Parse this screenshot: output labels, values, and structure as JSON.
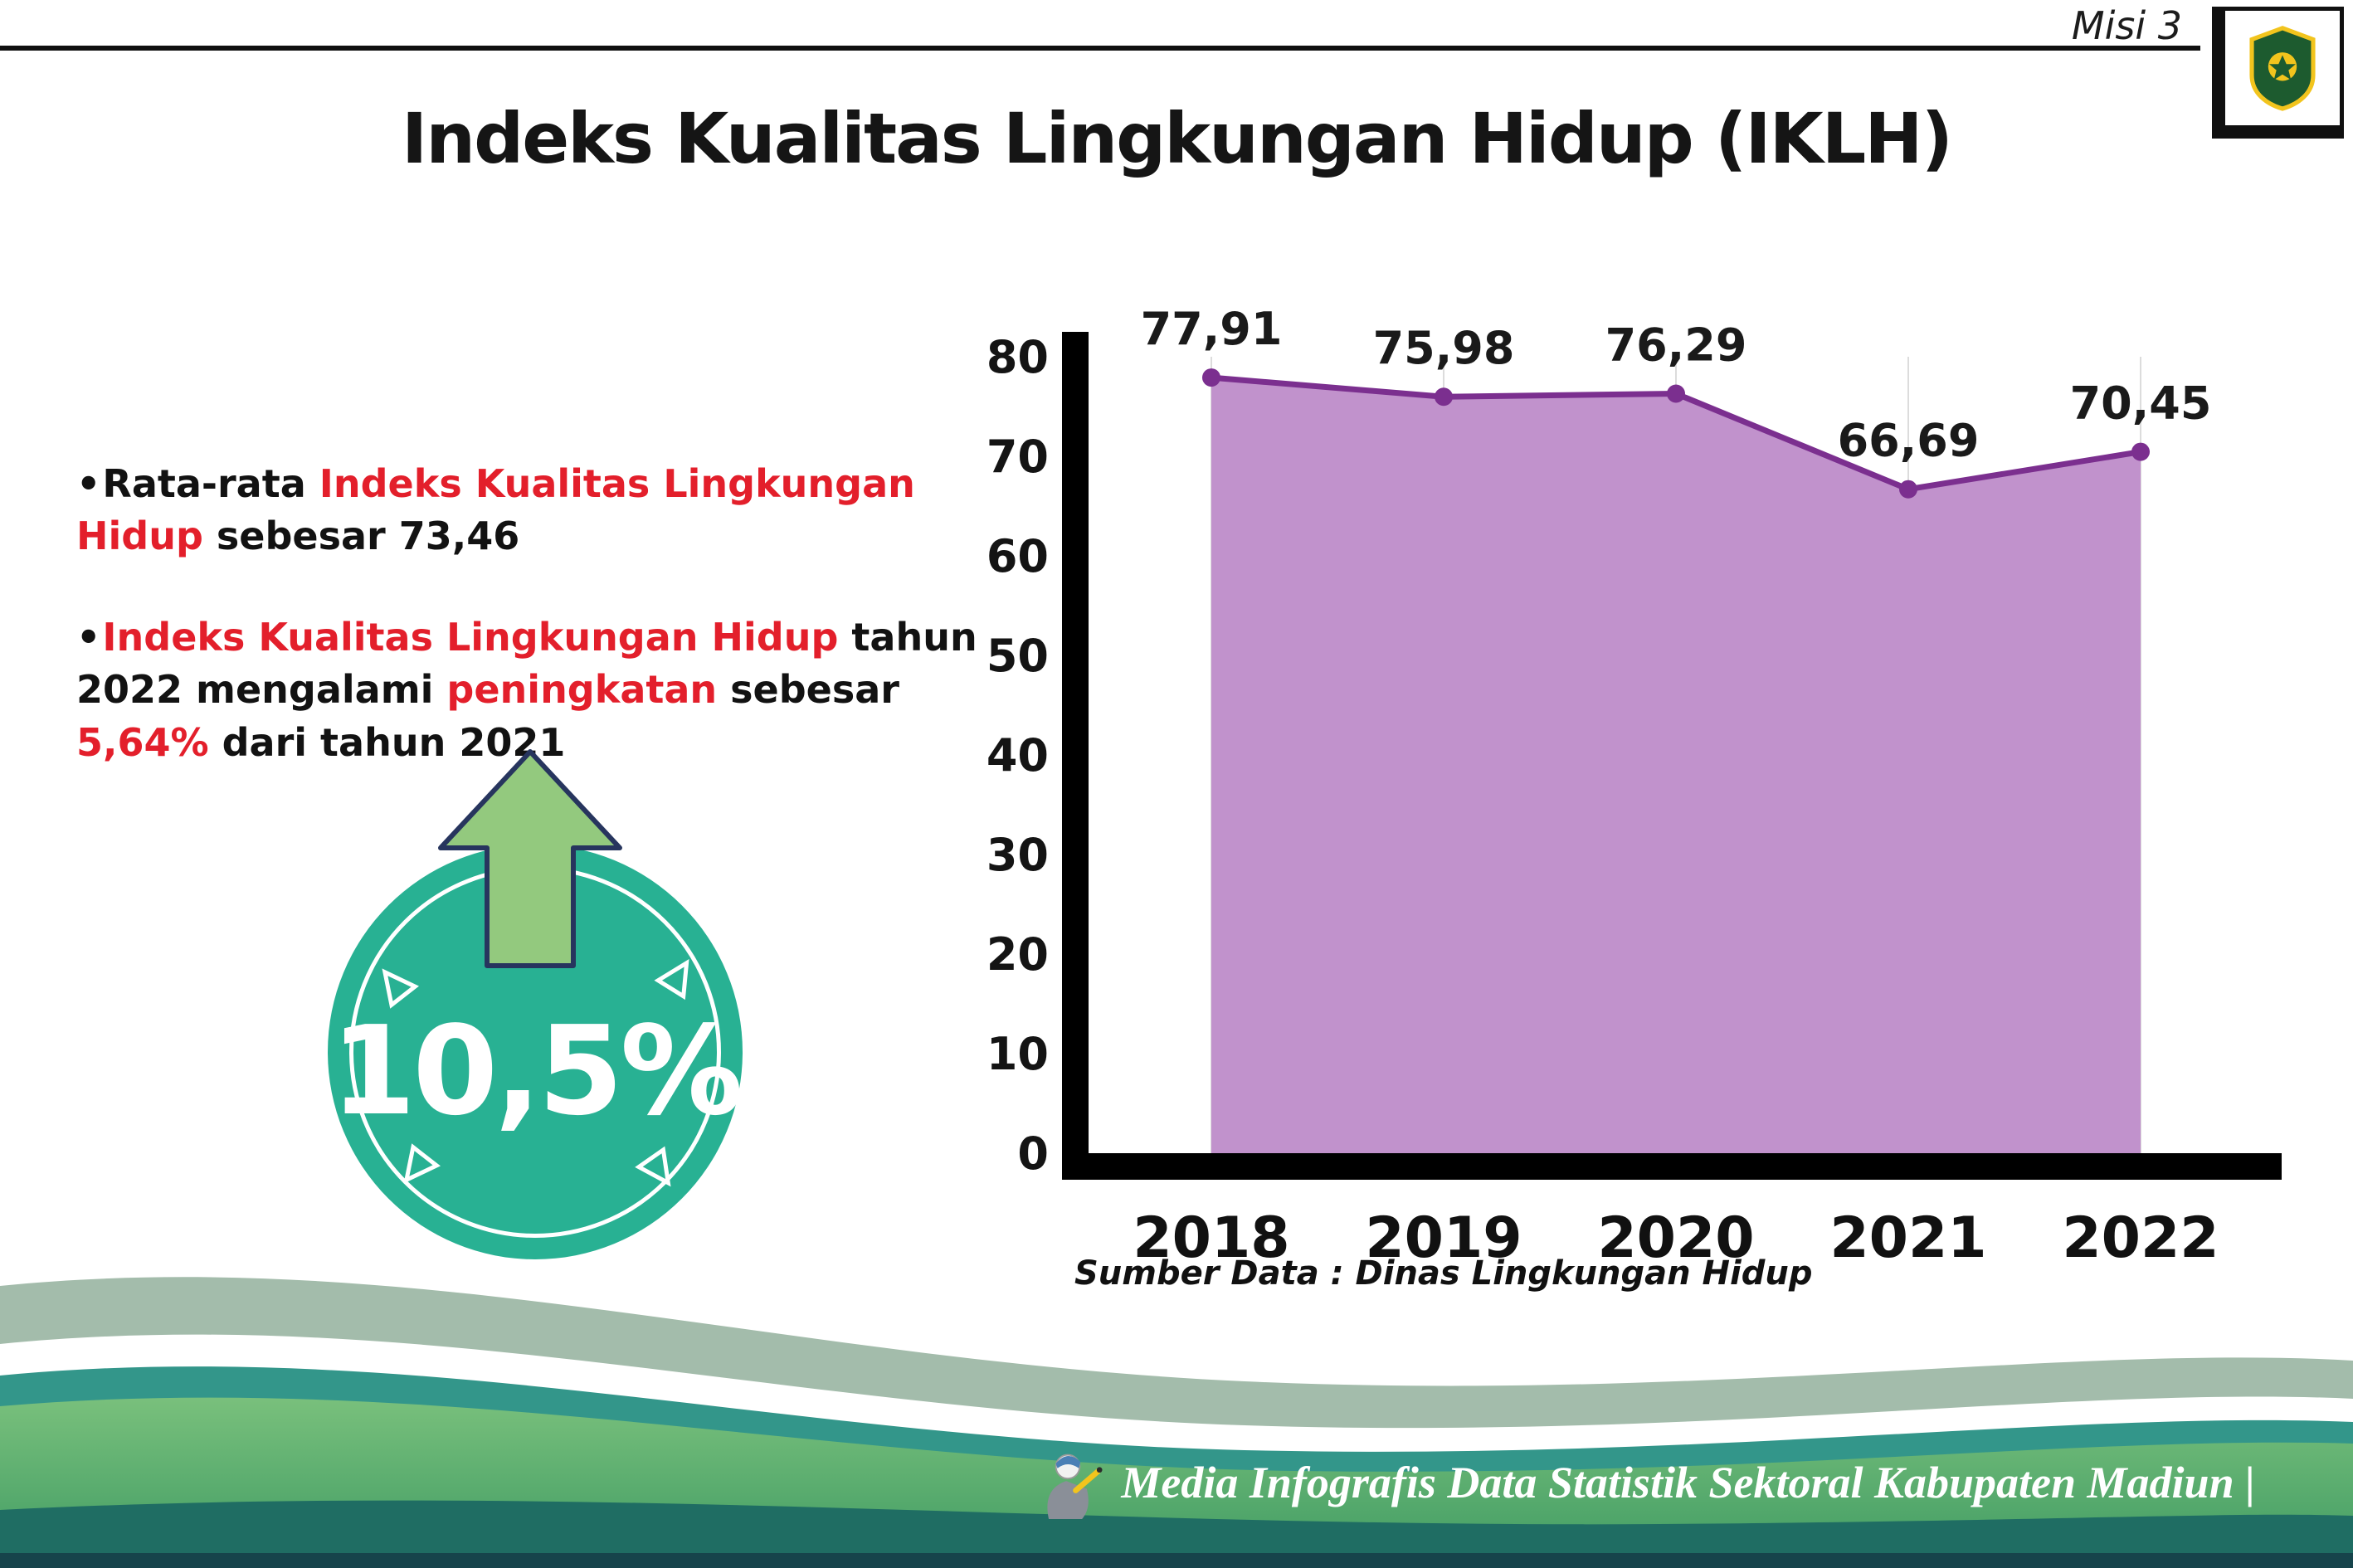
{
  "header": {
    "misi_label": "Misi 3",
    "title": "Indeks Kualitas Lingkungan Hidup (IKLH)",
    "logo_name": "kabupaten-madiun-crest"
  },
  "bullets": [
    {
      "segments": [
        {
          "t": "Rata-rata ",
          "c": "black"
        },
        {
          "t": "Indeks Kualitas Lingkungan Hidup",
          "c": "red"
        },
        {
          "t": " sebesar 73,46",
          "c": "black"
        }
      ]
    },
    {
      "segments": [
        {
          "t": "Indeks Kualitas Lingkungan Hidup",
          "c": "red"
        },
        {
          "t": " tahun 2022 mengalami ",
          "c": "black"
        },
        {
          "t": "peningkatan",
          "c": "red"
        },
        {
          "t": " sebesar ",
          "c": "black"
        },
        {
          "t": "5,64%",
          "c": "red"
        },
        {
          "t": " dari tahun 2021",
          "c": "black"
        }
      ]
    }
  ],
  "badge": {
    "value": "10,5%",
    "circle_color": "#28b193",
    "arrow_color": "#93c97e"
  },
  "chart_data": {
    "type": "area",
    "title": "Indeks Kualitas Lingkungan Hidup (IKLH)",
    "categories": [
      "2018",
      "2019",
      "2020",
      "2021",
      "2022"
    ],
    "values": [
      77.91,
      75.98,
      76.29,
      66.69,
      70.45
    ],
    "value_labels": [
      "77,91",
      "75,98",
      "76,29",
      "66,69",
      "70,45"
    ],
    "xlabel": "",
    "ylabel": "",
    "ylim": [
      0,
      80
    ],
    "ytick_step": 10,
    "grid": "vertical-light",
    "legend": "none",
    "source": "Sumber Data : Dinas Lingkungan Hidup",
    "colors": {
      "line": "#7b2f8f",
      "fill": "#c192cc",
      "axis": "#000000"
    }
  },
  "footer": {
    "text": "Media Infografis Data Statistik Sektoral Kabupaten Madiun |"
  }
}
